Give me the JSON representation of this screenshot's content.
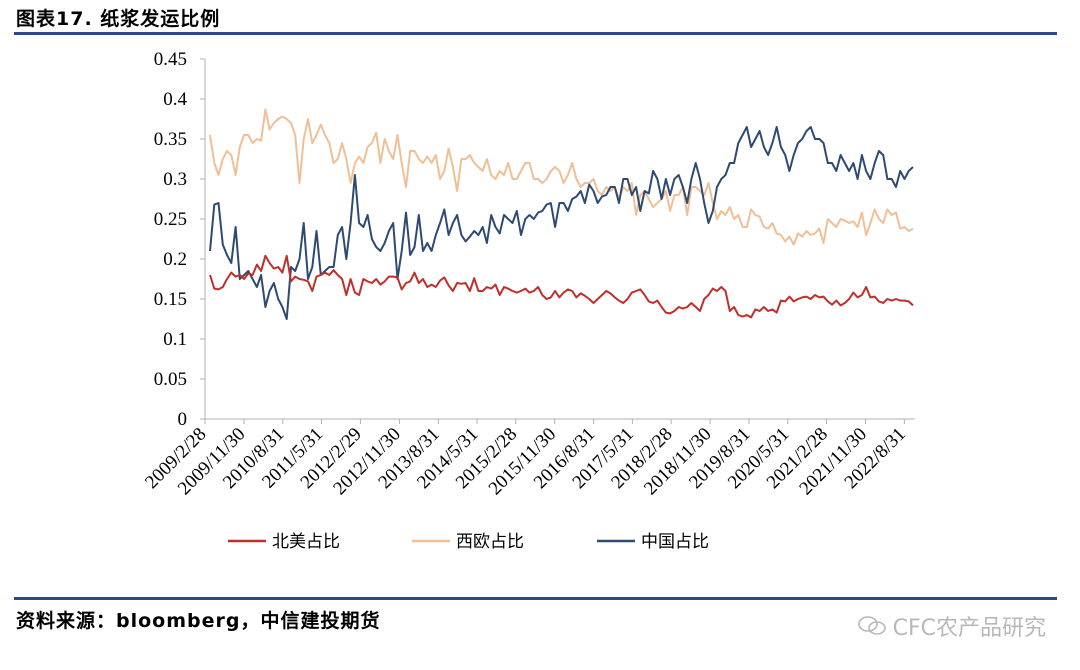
{
  "header": {
    "title": "图表17. 纸浆发运比例"
  },
  "footer": {
    "source": "资料来源：bloomberg，中信建投期货"
  },
  "watermark": {
    "text": "CFC农产品研究",
    "icon": "wechat-icon"
  },
  "chart_data": {
    "type": "line",
    "ylim": [
      0,
      0.45
    ],
    "yticks": [
      "0",
      "0.05",
      "0.1",
      "0.15",
      "0.2",
      "0.25",
      "0.3",
      "0.35",
      "0.4",
      "0.45"
    ],
    "xtick_labels": [
      "2009/2/28",
      "2009/11/30",
      "2010/8/31",
      "2011/5/31",
      "2012/2/29",
      "2012/11/30",
      "2013/8/31",
      "2014/5/31",
      "2015/2/28",
      "2015/11/30",
      "2016/8/31",
      "2017/5/31",
      "2018/2/28",
      "2018/11/30",
      "2019/8/31",
      "2020/5/31",
      "2021/2/28",
      "2021/11/30",
      "2022/8/31"
    ],
    "legend_position": "bottom",
    "grid": false,
    "x_start": "2009/2/28",
    "x_end": "2022/10/31",
    "series": [
      {
        "name": "北美占比",
        "color": "#c0302b",
        "values": [
          0.18,
          0.163,
          0.162,
          0.165,
          0.175,
          0.183,
          0.178,
          0.18,
          0.175,
          0.182,
          0.18,
          0.193,
          0.185,
          0.204,
          0.195,
          0.188,
          0.19,
          0.183,
          0.204,
          0.172,
          0.178,
          0.175,
          0.174,
          0.172,
          0.16,
          0.178,
          0.18,
          0.183,
          0.18,
          0.186,
          0.18,
          0.175,
          0.155,
          0.175,
          0.158,
          0.155,
          0.175,
          0.172,
          0.17,
          0.175,
          0.168,
          0.172,
          0.178,
          0.178,
          0.177,
          0.162,
          0.17,
          0.172,
          0.183,
          0.17,
          0.175,
          0.165,
          0.168,
          0.165,
          0.173,
          0.177,
          0.167,
          0.16,
          0.17,
          0.169,
          0.17,
          0.16,
          0.176,
          0.16,
          0.16,
          0.165,
          0.163,
          0.168,
          0.155,
          0.165,
          0.163,
          0.16,
          0.158,
          0.16,
          0.163,
          0.158,
          0.16,
          0.165,
          0.155,
          0.15,
          0.152,
          0.16,
          0.152,
          0.158,
          0.162,
          0.16,
          0.152,
          0.157,
          0.154,
          0.15,
          0.145,
          0.15,
          0.155,
          0.16,
          0.157,
          0.152,
          0.148,
          0.145,
          0.15,
          0.158,
          0.16,
          0.162,
          0.155,
          0.147,
          0.145,
          0.148,
          0.14,
          0.133,
          0.132,
          0.135,
          0.14,
          0.138,
          0.14,
          0.145,
          0.14,
          0.135,
          0.15,
          0.155,
          0.163,
          0.16,
          0.165,
          0.16,
          0.135,
          0.14,
          0.13,
          0.128,
          0.13,
          0.127,
          0.137,
          0.135,
          0.14,
          0.135,
          0.137,
          0.133,
          0.148,
          0.147,
          0.153,
          0.147,
          0.15,
          0.152,
          0.153,
          0.15,
          0.155,
          0.152,
          0.153,
          0.147,
          0.143,
          0.148,
          0.142,
          0.145,
          0.15,
          0.158,
          0.152,
          0.155,
          0.165,
          0.152,
          0.153,
          0.147,
          0.145,
          0.15,
          0.148,
          0.15,
          0.148,
          0.148,
          0.147,
          0.142
        ]
      },
      {
        "name": "西欧占比",
        "color": "#f0bf95",
        "values": [
          0.355,
          0.32,
          0.305,
          0.325,
          0.335,
          0.33,
          0.305,
          0.34,
          0.355,
          0.355,
          0.345,
          0.35,
          0.348,
          0.387,
          0.362,
          0.37,
          0.375,
          0.378,
          0.375,
          0.37,
          0.355,
          0.295,
          0.35,
          0.375,
          0.345,
          0.355,
          0.368,
          0.355,
          0.345,
          0.32,
          0.325,
          0.345,
          0.325,
          0.295,
          0.32,
          0.328,
          0.32,
          0.34,
          0.345,
          0.358,
          0.32,
          0.35,
          0.335,
          0.325,
          0.355,
          0.32,
          0.29,
          0.335,
          0.335,
          0.325,
          0.32,
          0.328,
          0.32,
          0.33,
          0.3,
          0.31,
          0.338,
          0.315,
          0.285,
          0.325,
          0.325,
          0.33,
          0.32,
          0.315,
          0.31,
          0.325,
          0.305,
          0.3,
          0.31,
          0.305,
          0.32,
          0.3,
          0.3,
          0.31,
          0.32,
          0.32,
          0.3,
          0.3,
          0.295,
          0.3,
          0.31,
          0.315,
          0.31,
          0.295,
          0.305,
          0.32,
          0.3,
          0.29,
          0.295,
          0.295,
          0.3,
          0.285,
          0.28,
          0.29,
          0.285,
          0.29,
          0.275,
          0.29,
          0.285,
          0.295,
          0.255,
          0.28,
          0.285,
          0.275,
          0.265,
          0.27,
          0.275,
          0.285,
          0.26,
          0.28,
          0.28,
          0.29,
          0.255,
          0.29,
          0.29,
          0.285,
          0.28,
          0.295,
          0.27,
          0.25,
          0.26,
          0.255,
          0.265,
          0.25,
          0.255,
          0.24,
          0.24,
          0.262,
          0.255,
          0.253,
          0.24,
          0.238,
          0.245,
          0.232,
          0.23,
          0.222,
          0.228,
          0.218,
          0.232,
          0.228,
          0.235,
          0.23,
          0.232,
          0.238,
          0.22,
          0.25,
          0.245,
          0.24,
          0.25,
          0.248,
          0.245,
          0.247,
          0.24,
          0.258,
          0.23,
          0.245,
          0.262,
          0.25,
          0.245,
          0.262,
          0.255,
          0.258,
          0.238,
          0.24,
          0.235,
          0.238
        ]
      },
      {
        "name": "中国占比",
        "color": "#2f4a72",
        "values": [
          0.21,
          0.268,
          0.27,
          0.218,
          0.205,
          0.195,
          0.24,
          0.175,
          0.18,
          0.185,
          0.175,
          0.165,
          0.18,
          0.14,
          0.16,
          0.17,
          0.15,
          0.14,
          0.125,
          0.19,
          0.185,
          0.2,
          0.245,
          0.175,
          0.19,
          0.235,
          0.18,
          0.185,
          0.19,
          0.19,
          0.23,
          0.24,
          0.2,
          0.245,
          0.305,
          0.245,
          0.24,
          0.255,
          0.225,
          0.215,
          0.21,
          0.22,
          0.235,
          0.245,
          0.175,
          0.21,
          0.258,
          0.205,
          0.215,
          0.255,
          0.21,
          0.22,
          0.21,
          0.23,
          0.245,
          0.262,
          0.23,
          0.245,
          0.255,
          0.23,
          0.222,
          0.228,
          0.235,
          0.23,
          0.24,
          0.22,
          0.255,
          0.24,
          0.232,
          0.255,
          0.25,
          0.245,
          0.26,
          0.23,
          0.25,
          0.255,
          0.25,
          0.258,
          0.26,
          0.268,
          0.27,
          0.24,
          0.27,
          0.27,
          0.26,
          0.275,
          0.278,
          0.285,
          0.27,
          0.293,
          0.285,
          0.27,
          0.278,
          0.28,
          0.29,
          0.29,
          0.27,
          0.3,
          0.3,
          0.28,
          0.29,
          0.26,
          0.285,
          0.282,
          0.31,
          0.3,
          0.275,
          0.3,
          0.28,
          0.3,
          0.305,
          0.29,
          0.27,
          0.3,
          0.32,
          0.3,
          0.27,
          0.245,
          0.26,
          0.29,
          0.3,
          0.305,
          0.32,
          0.32,
          0.345,
          0.355,
          0.365,
          0.34,
          0.35,
          0.36,
          0.34,
          0.33,
          0.345,
          0.365,
          0.34,
          0.33,
          0.31,
          0.33,
          0.345,
          0.35,
          0.36,
          0.365,
          0.35,
          0.35,
          0.345,
          0.32,
          0.32,
          0.31,
          0.33,
          0.32,
          0.31,
          0.32,
          0.3,
          0.33,
          0.31,
          0.3,
          0.32,
          0.335,
          0.33,
          0.3,
          0.3,
          0.29,
          0.31,
          0.3,
          0.31,
          0.315
        ]
      }
    ]
  }
}
